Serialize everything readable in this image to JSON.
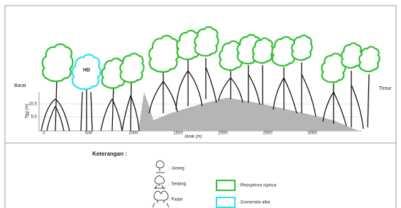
{
  "profile": {
    "west_label": "Barat",
    "east_label": "Timur",
    "crown_label": "HD",
    "y_axis_label": "Tgg (m)",
    "y_ticks": [
      "10,0",
      "5,0"
    ],
    "x_ticks": [
      "0",
      "500",
      "1000",
      "1500",
      "2000",
      "2500",
      "3000"
    ],
    "x_axis_label": "Jarak (m)"
  },
  "legend": {
    "title": "Keterangan :",
    "density": [
      ": Jarang",
      ": Sedang",
      ": Padat"
    ],
    "species": [
      ": Rhizophora stylosa",
      ": Sonneratia alba"
    ]
  }
}
